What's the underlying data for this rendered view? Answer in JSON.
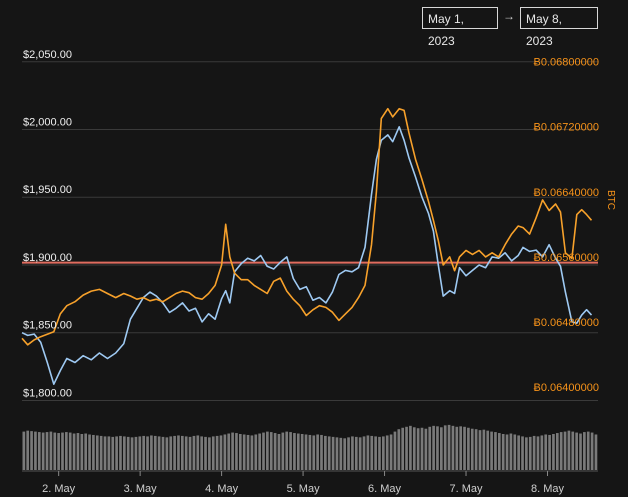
{
  "range": {
    "start": "May 1, 2023",
    "arrow": "→",
    "end": "May 8, 2023"
  },
  "chart_data": {
    "type": "line",
    "x_unit": "days since May 1, 2023",
    "x_ticks": [
      {
        "label": "2. May",
        "x": 1
      },
      {
        "label": "3. May",
        "x": 2
      },
      {
        "label": "4. May",
        "x": 3
      },
      {
        "label": "5. May",
        "x": 4
      },
      {
        "label": "6. May",
        "x": 5
      },
      {
        "label": "7. May",
        "x": 6
      },
      {
        "label": "8. May",
        "x": 7
      }
    ],
    "x_range": [
      0.55,
      7.62
    ],
    "y_left": {
      "ticks": [
        {
          "label": "$2,050.00",
          "v": 2050
        },
        {
          "label": "$2,000.00",
          "v": 2000
        },
        {
          "label": "$1,950.00",
          "v": 1950
        },
        {
          "label": "$1,900.00",
          "v": 1900
        },
        {
          "label": "$1,850.00",
          "v": 1850
        },
        {
          "label": "$1,800.00",
          "v": 1800
        }
      ],
      "range": [
        1790,
        2055
      ]
    },
    "y_right": {
      "unit": "BTC",
      "ticks": [
        {
          "label": "Ƀ0.06800000",
          "v": 0.068
        },
        {
          "label": "Ƀ0.06720000",
          "v": 0.0672
        },
        {
          "label": "Ƀ0.06640000",
          "v": 0.0664
        },
        {
          "label": "Ƀ0.06560000",
          "v": 0.0656
        },
        {
          "label": "Ƀ0.06480000",
          "v": 0.0648
        },
        {
          "label": "Ƀ0.06400000",
          "v": 0.064
        }
      ],
      "range": [
        0.06367,
        0.06808
      ]
    },
    "reference_line": {
      "axis": "right",
      "value": 0.06553,
      "color": "#e06c5f"
    },
    "series": [
      {
        "name": "",
        "axis": "left",
        "color": "#9ec9f2",
        "points": [
          [
            0.55,
            1850
          ],
          [
            0.62,
            1848
          ],
          [
            0.7,
            1849
          ],
          [
            0.78,
            1843
          ],
          [
            0.86,
            1828
          ],
          [
            0.94,
            1812
          ],
          [
            1.02,
            1822
          ],
          [
            1.1,
            1831
          ],
          [
            1.2,
            1828
          ],
          [
            1.3,
            1833
          ],
          [
            1.4,
            1830
          ],
          [
            1.5,
            1835
          ],
          [
            1.6,
            1831
          ],
          [
            1.7,
            1835
          ],
          [
            1.8,
            1842
          ],
          [
            1.88,
            1860
          ],
          [
            1.96,
            1868
          ],
          [
            2.04,
            1876
          ],
          [
            2.12,
            1880
          ],
          [
            2.2,
            1877
          ],
          [
            2.28,
            1872
          ],
          [
            2.36,
            1865
          ],
          [
            2.44,
            1868
          ],
          [
            2.52,
            1872
          ],
          [
            2.6,
            1866
          ],
          [
            2.68,
            1868
          ],
          [
            2.76,
            1858
          ],
          [
            2.84,
            1864
          ],
          [
            2.92,
            1860
          ],
          [
            3.0,
            1875
          ],
          [
            3.05,
            1881
          ],
          [
            3.1,
            1872
          ],
          [
            3.16,
            1895
          ],
          [
            3.24,
            1901
          ],
          [
            3.32,
            1905
          ],
          [
            3.4,
            1903
          ],
          [
            3.48,
            1907
          ],
          [
            3.56,
            1899
          ],
          [
            3.64,
            1897
          ],
          [
            3.72,
            1902
          ],
          [
            3.8,
            1906
          ],
          [
            3.88,
            1890
          ],
          [
            3.96,
            1882
          ],
          [
            4.04,
            1884
          ],
          [
            4.12,
            1874
          ],
          [
            4.2,
            1876
          ],
          [
            4.28,
            1872
          ],
          [
            4.36,
            1880
          ],
          [
            4.44,
            1893
          ],
          [
            4.52,
            1896
          ],
          [
            4.6,
            1895
          ],
          [
            4.68,
            1898
          ],
          [
            4.76,
            1913
          ],
          [
            4.84,
            1952
          ],
          [
            4.9,
            1978
          ],
          [
            4.96,
            1992
          ],
          [
            5.04,
            1996
          ],
          [
            5.1,
            1991
          ],
          [
            5.18,
            2002
          ],
          [
            5.24,
            1992
          ],
          [
            5.3,
            1979
          ],
          [
            5.38,
            1965
          ],
          [
            5.46,
            1950
          ],
          [
            5.54,
            1938
          ],
          [
            5.6,
            1925
          ],
          [
            5.66,
            1900
          ],
          [
            5.72,
            1877
          ],
          [
            5.8,
            1881
          ],
          [
            5.86,
            1879
          ],
          [
            5.92,
            1898
          ],
          [
            6.0,
            1892
          ],
          [
            6.08,
            1896
          ],
          [
            6.16,
            1900
          ],
          [
            6.24,
            1898
          ],
          [
            6.32,
            1906
          ],
          [
            6.4,
            1905
          ],
          [
            6.48,
            1909
          ],
          [
            6.56,
            1903
          ],
          [
            6.64,
            1907
          ],
          [
            6.7,
            1913
          ],
          [
            6.78,
            1910
          ],
          [
            6.86,
            1911
          ],
          [
            6.94,
            1906
          ],
          [
            7.02,
            1915
          ],
          [
            7.1,
            1905
          ],
          [
            7.16,
            1899
          ],
          [
            7.22,
            1880
          ],
          [
            7.3,
            1858
          ],
          [
            7.36,
            1857
          ],
          [
            7.42,
            1863
          ],
          [
            7.48,
            1867
          ],
          [
            7.54,
            1863
          ]
        ]
      },
      {
        "name": "",
        "axis": "right",
        "color": "#f7a12b",
        "points": [
          [
            0.55,
            0.0646
          ],
          [
            0.62,
            0.06452
          ],
          [
            0.7,
            0.06458
          ],
          [
            0.78,
            0.06462
          ],
          [
            0.86,
            0.06465
          ],
          [
            0.94,
            0.06468
          ],
          [
            1.02,
            0.0649
          ],
          [
            1.1,
            0.065
          ],
          [
            1.2,
            0.06505
          ],
          [
            1.3,
            0.06513
          ],
          [
            1.4,
            0.06518
          ],
          [
            1.5,
            0.0652
          ],
          [
            1.6,
            0.06515
          ],
          [
            1.7,
            0.0651
          ],
          [
            1.8,
            0.06515
          ],
          [
            1.88,
            0.06512
          ],
          [
            1.96,
            0.06508
          ],
          [
            2.04,
            0.0651
          ],
          [
            2.12,
            0.06506
          ],
          [
            2.2,
            0.06508
          ],
          [
            2.28,
            0.06505
          ],
          [
            2.36,
            0.0651
          ],
          [
            2.44,
            0.06515
          ],
          [
            2.52,
            0.06518
          ],
          [
            2.6,
            0.06516
          ],
          [
            2.68,
            0.0651
          ],
          [
            2.76,
            0.06508
          ],
          [
            2.84,
            0.06515
          ],
          [
            2.92,
            0.06525
          ],
          [
            3.0,
            0.0655
          ],
          [
            3.05,
            0.066
          ],
          [
            3.1,
            0.0656
          ],
          [
            3.16,
            0.0654
          ],
          [
            3.24,
            0.06532
          ],
          [
            3.32,
            0.06532
          ],
          [
            3.4,
            0.06525
          ],
          [
            3.48,
            0.0652
          ],
          [
            3.56,
            0.06515
          ],
          [
            3.64,
            0.0653
          ],
          [
            3.72,
            0.06534
          ],
          [
            3.8,
            0.06518
          ],
          [
            3.88,
            0.06508
          ],
          [
            3.96,
            0.065
          ],
          [
            4.04,
            0.06488
          ],
          [
            4.12,
            0.06495
          ],
          [
            4.2,
            0.065
          ],
          [
            4.28,
            0.06498
          ],
          [
            4.36,
            0.06492
          ],
          [
            4.44,
            0.06482
          ],
          [
            4.52,
            0.0649
          ],
          [
            4.6,
            0.06498
          ],
          [
            4.68,
            0.0651
          ],
          [
            4.76,
            0.06525
          ],
          [
            4.84,
            0.06575
          ],
          [
            4.9,
            0.0664
          ],
          [
            4.96,
            0.0673
          ],
          [
            5.04,
            0.06742
          ],
          [
            5.1,
            0.06732
          ],
          [
            5.18,
            0.06742
          ],
          [
            5.24,
            0.0674
          ],
          [
            5.3,
            0.06712
          ],
          [
            5.38,
            0.0668
          ],
          [
            5.46,
            0.06655
          ],
          [
            5.54,
            0.06628
          ],
          [
            5.6,
            0.06605
          ],
          [
            5.66,
            0.0658
          ],
          [
            5.72,
            0.0655
          ],
          [
            5.8,
            0.0656
          ],
          [
            5.86,
            0.06543
          ],
          [
            5.92,
            0.0656
          ],
          [
            6.0,
            0.06568
          ],
          [
            6.08,
            0.06563
          ],
          [
            6.16,
            0.06568
          ],
          [
            6.24,
            0.0656
          ],
          [
            6.32,
            0.06565
          ],
          [
            6.4,
            0.0656
          ],
          [
            6.48,
            0.06575
          ],
          [
            6.56,
            0.06588
          ],
          [
            6.64,
            0.06598
          ],
          [
            6.7,
            0.06596
          ],
          [
            6.78,
            0.06588
          ],
          [
            6.86,
            0.06608
          ],
          [
            6.94,
            0.0663
          ],
          [
            7.02,
            0.06617
          ],
          [
            7.1,
            0.06625
          ],
          [
            7.16,
            0.06615
          ],
          [
            7.22,
            0.06565
          ],
          [
            7.3,
            0.06558
          ],
          [
            7.36,
            0.06612
          ],
          [
            7.42,
            0.06618
          ],
          [
            7.48,
            0.06612
          ],
          [
            7.54,
            0.06605
          ]
        ]
      }
    ],
    "volume": {
      "color": "#7a7a7a",
      "values": [
        0.8,
        0.82,
        0.81,
        0.8,
        0.79,
        0.78,
        0.79,
        0.8,
        0.78,
        0.77,
        0.78,
        0.79,
        0.78,
        0.76,
        0.77,
        0.75,
        0.76,
        0.74,
        0.73,
        0.72,
        0.71,
        0.7,
        0.7,
        0.69,
        0.7,
        0.71,
        0.7,
        0.69,
        0.68,
        0.69,
        0.7,
        0.71,
        0.7,
        0.72,
        0.71,
        0.7,
        0.69,
        0.68,
        0.7,
        0.71,
        0.72,
        0.71,
        0.7,
        0.69,
        0.71,
        0.72,
        0.7,
        0.69,
        0.68,
        0.7,
        0.71,
        0.72,
        0.74,
        0.76,
        0.78,
        0.77,
        0.75,
        0.74,
        0.73,
        0.72,
        0.74,
        0.76,
        0.78,
        0.8,
        0.79,
        0.77,
        0.75,
        0.78,
        0.8,
        0.79,
        0.77,
        0.76,
        0.75,
        0.74,
        0.73,
        0.72,
        0.74,
        0.73,
        0.71,
        0.7,
        0.69,
        0.68,
        0.67,
        0.66,
        0.68,
        0.7,
        0.69,
        0.68,
        0.7,
        0.72,
        0.71,
        0.7,
        0.69,
        0.7,
        0.72,
        0.74,
        0.8,
        0.85,
        0.88,
        0.9,
        0.92,
        0.89,
        0.87,
        0.88,
        0.86,
        0.9,
        0.92,
        0.91,
        0.89,
        0.93,
        0.94,
        0.92,
        0.9,
        0.91,
        0.9,
        0.88,
        0.86,
        0.85,
        0.83,
        0.84,
        0.82,
        0.8,
        0.79,
        0.77,
        0.75,
        0.74,
        0.76,
        0.74,
        0.72,
        0.7,
        0.68,
        0.69,
        0.71,
        0.7,
        0.72,
        0.74,
        0.73,
        0.75,
        0.77,
        0.79,
        0.8,
        0.82,
        0.8,
        0.78,
        0.76,
        0.79,
        0.8,
        0.78,
        0.74
      ]
    }
  }
}
